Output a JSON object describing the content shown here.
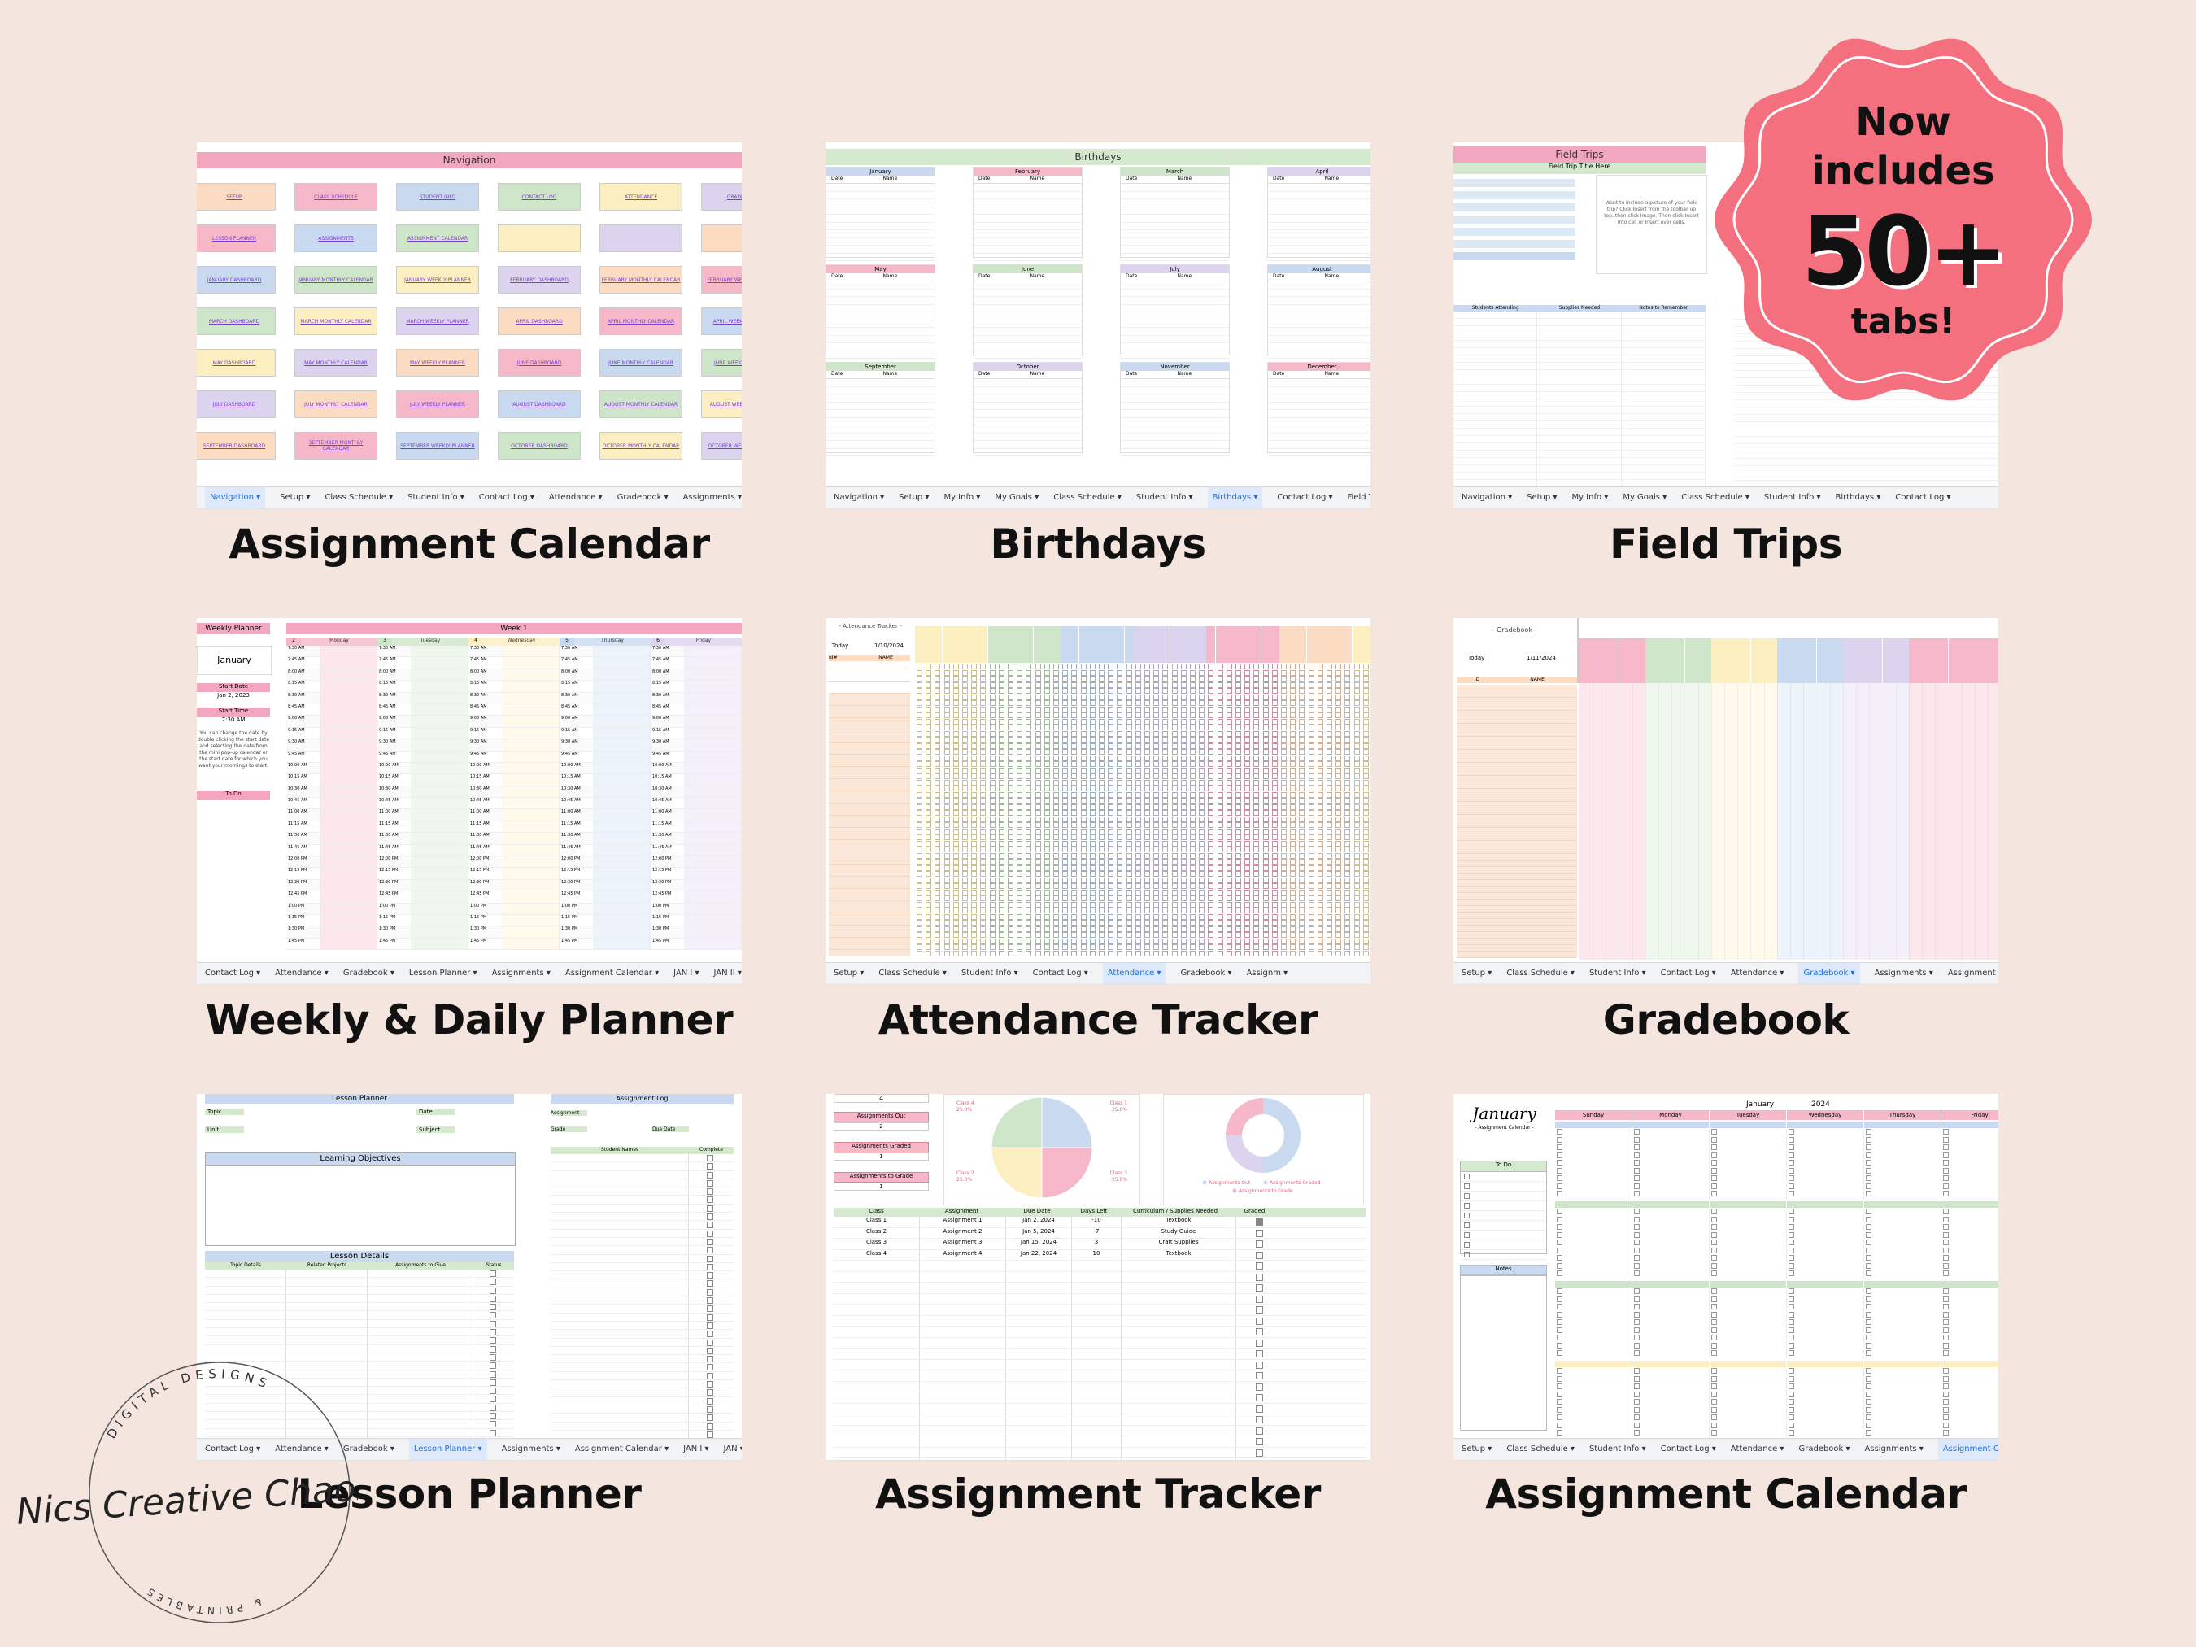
{
  "badge": {
    "line1": "Now",
    "line2": "includes",
    "line3": "50+",
    "line4": "tabs!"
  },
  "logo": {
    "arc_top": "DIGITAL DESIGNS",
    "script": "Nics Creative Chaos",
    "arc_bottom": "& PRINTABLES"
  },
  "panels": [
    {
      "caption": "Assignment Calendar",
      "sheet_title": "Navigation",
      "buttons": [
        "SETUP",
        "CLASS SCHEDULE",
        "STUDENT INFO",
        "CONTACT LOG",
        "ATTENDANCE",
        "GRADEBOOK",
        "LESSON PLANNER",
        "ASSIGNMENTS",
        "ASSIGNMENT CALENDAR",
        "",
        "",
        "",
        "JANUARY DASHBOARD",
        "JANUARY MONTHLY CALENDAR",
        "JANUARY WEEKLY PLANNER",
        "FEBRUARY DASHBOARD",
        "FEBRUARY MONTHLY CALENDAR",
        "FEBRUARY WEEKLY PLANNER",
        "MARCH DASHBOARD",
        "MARCH MONTHLY CALENDAR",
        "MARCH WEEKLY PLANNER",
        "APRIL DASHBOARD",
        "APRIL MONTHLY CALENDAR",
        "APRIL WEEKLY PLANNER",
        "MAY DASHBOARD",
        "MAY MONTHLY CALENDAR",
        "MAY WEEKLY PLANNER",
        "JUNE DASHBOARD",
        "JUNE MONTHLY CALENDAR",
        "JUNE WEEKLY PLANNER",
        "JULY DASHBOARD",
        "JULY MONTHLY CALENDAR",
        "JULY WEEKLY PLANNER",
        "AUGUST DASHBOARD",
        "AUGUST MONTHLY CALENDAR",
        "AUGUST WEEKLY PLANNER",
        "SEPTEMBER DASHBOARD",
        "SEPTEMBER MONTHLY CALENDAR",
        "SEPTEMBER WEEKLY PLANNER",
        "OCTOBER DASHBOARD",
        "OCTOBER MONTHLY CALENDAR",
        "OCTOBER WEEKLY PLANNER"
      ],
      "tabs": [
        "Navigation",
        "Setup",
        "Class Schedule",
        "Student Info",
        "Contact Log",
        "Attendance",
        "Gradebook",
        "Assignments",
        "Assi"
      ],
      "active_tab": 0
    },
    {
      "caption": "Birthdays",
      "sheet_title": "Birthdays",
      "months": [
        "January",
        "February",
        "March",
        "April",
        "May",
        "June",
        "July",
        "August",
        "September",
        "October",
        "November",
        "December"
      ],
      "col_date": "Date",
      "col_name": "Name",
      "tabs": [
        "Navigation",
        "Setup",
        "My Info",
        "My Goals",
        "Class Schedule",
        "Student Info",
        "Birthdays",
        "Contact Log",
        "Field Trips"
      ],
      "active_tab": 6
    },
    {
      "caption": "Field Trips",
      "sheet_title": "Field Trips",
      "subtitle": "Field Trip Title Here",
      "note": "Want to include a picture of your field trip? Click Insert from the toolbar up top, then click Image. Then click Insert into cell or Insert over cells.",
      "cols": [
        "Students Attending",
        "Supplies Needed",
        "Notes to Remember"
      ],
      "tabs": [
        "Navigation",
        "Setup",
        "My Info",
        "My Goals",
        "Class Schedule",
        "Student Info",
        "Birthdays",
        "Contact Log"
      ],
      "active_tab": -1
    },
    {
      "caption": "Weekly & Daily Planner",
      "left_title": "Weekly Planner",
      "month": "January",
      "start_date_label": "Start Date",
      "start_date": "Jan 2, 2023",
      "start_time_label": "Start Time",
      "start_time": "7:30 AM",
      "help": "You can change the date by double clicking the start date and selecting the date from the mini pop-up calendar or the start date for which you want your mornings to start.",
      "todo": "To Do",
      "week": "Week 1",
      "days": [
        "2",
        "Monday",
        "3",
        "Tuesday",
        "4",
        "Wednesday",
        "5",
        "Thursday",
        "6",
        "Friday"
      ],
      "times": [
        "7:30 AM",
        "7:45 AM",
        "8:00 AM",
        "8:15 AM",
        "8:30 AM",
        "8:45 AM",
        "9:00 AM",
        "9:15 AM",
        "9:30 AM",
        "9:45 AM",
        "10:00 AM",
        "10:15 AM",
        "10:30 AM",
        "10:45 AM",
        "11:00 AM",
        "11:15 AM",
        "11:30 AM",
        "11:45 AM",
        "12:00 PM",
        "12:15 PM",
        "12:30 PM",
        "12:45 PM",
        "1:00 PM",
        "1:15 PM",
        "1:30 PM",
        "1:45 PM"
      ],
      "tabs": [
        "Contact Log",
        "Attendance",
        "Gradebook",
        "Lesson Planner",
        "Assignments",
        "Assignment Calendar",
        "JAN I",
        "JAN II"
      ],
      "active_tab": -1
    },
    {
      "caption": "Attendance Tracker",
      "sheet_title": "- Attendance Tracker -",
      "today_label": "Today",
      "today": "1/10/2024",
      "col_id": "Id#",
      "col_name": "NAME",
      "tabs": [
        "Setup",
        "Class Schedule",
        "Student Info",
        "Contact Log",
        "Attendance",
        "Gradebook",
        "Assignm"
      ],
      "active_tab": 4
    },
    {
      "caption": "Gradebook",
      "sheet_title": "- Gradebook -",
      "today_label": "Today",
      "today": "1/11/2024",
      "col_id": "ID",
      "col_name": "NAME",
      "tabs": [
        "Setup",
        "Class Schedule",
        "Student Info",
        "Contact Log",
        "Attendance",
        "Gradebook",
        "Assignments",
        "Assignment Ca"
      ],
      "active_tab": 5
    },
    {
      "caption": "Lesson Planner",
      "sheet_title": "Lesson Planner",
      "topic": "Topic",
      "date": "Date",
      "unit": "Unit",
      "subject": "Subject",
      "objectives": "Learning Objectives",
      "details": "Lesson Details",
      "detail_cols": [
        "Topic Details",
        "Related Projects",
        "Assignments to Give",
        "Status"
      ],
      "log_title": "Assignment Log",
      "assignment": "Assignment",
      "grade": "Grade",
      "due_date": "Due Date",
      "student_names": "Student Names",
      "complete": "Complete",
      "tabs": [
        "Contact Log",
        "Attendance",
        "Gradebook",
        "Lesson Planner",
        "Assignments",
        "Assignment Calendar",
        "JAN I",
        "JAN"
      ],
      "active_tab": 3
    },
    {
      "caption": "Assignment Tracker",
      "stat_top": "4",
      "stat_labels": [
        "Assignments Out",
        "Assignments Graded",
        "Assignments to Grade"
      ],
      "stat_values": [
        "2",
        "1",
        "1"
      ],
      "pie_labels": [
        "Class 4",
        "Class 1",
        "Class 2",
        "Class 3"
      ],
      "pie_pct": [
        "25.0%",
        "25.0%",
        "25.0%",
        "25.0%"
      ],
      "donut_legend": [
        "Assignments Out",
        "Assignments Graded",
        "Assignments to Grade"
      ],
      "table_headers": [
        "Class",
        "Assignment",
        "Due Date",
        "Days Left",
        "Curriculum / Supplies Needed",
        "Graded"
      ],
      "rows": [
        [
          "Class 1",
          "Assignment 1",
          "Jan 2, 2024",
          "-10",
          "Textbook"
        ],
        [
          "Class 2",
          "Assignment 2",
          "Jan 5, 2024",
          "-7",
          "Study Guide"
        ],
        [
          "Class 3",
          "Assignment 3",
          "Jan 15, 2024",
          "3",
          "Craft Supplies"
        ],
        [
          "Class 4",
          "Assignment 4",
          "Jan 22, 2024",
          "10",
          "Textbook"
        ]
      ]
    },
    {
      "caption": "Assignment Calendar",
      "month_script": "January",
      "sub": "- Assignment Calendar -",
      "month": "January",
      "year": "2024",
      "days": [
        "Sunday",
        "Monday",
        "Tuesday",
        "Wednesday",
        "Thursday",
        "Friday"
      ],
      "todo": "To Do",
      "notes": "Notes",
      "tabs": [
        "Setup",
        "Class Schedule",
        "Student Info",
        "Contact Log",
        "Attendance",
        "Gradebook",
        "Assignments",
        "Assignment C"
      ],
      "active_tab": 7
    }
  ],
  "colors": {
    "pink": "#f6b8c9",
    "green": "#cfe5c9",
    "blue": "#c9daf0",
    "yellow": "#fbeec0",
    "purple": "#dcd3ee",
    "orange": "#fbdcc3",
    "badge": "#f4707f"
  }
}
